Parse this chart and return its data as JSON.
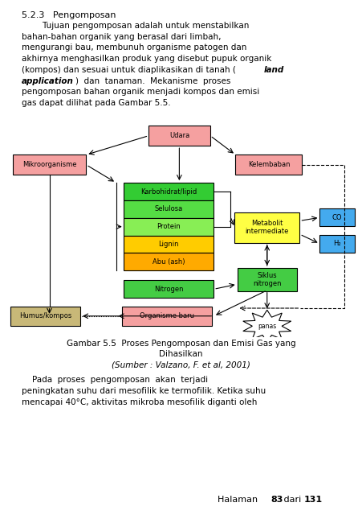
{
  "page_bg": "#ffffff",
  "title_section": "5.2.3   Pengomposan",
  "caption_line1": "Gambar 5.5  Proses Pengomposan dan Emisi Gas yang",
  "caption_line2": "Dihasilkan",
  "caption_line3": "(Sumber : Valzano, F. et al, 2001)",
  "colors": {
    "udara": "#f5a0a0",
    "mikroorganisme": "#f5a0a0",
    "kelembaban": "#f5a0a0",
    "karbohidrat": "#33cc33",
    "selulosa": "#55dd44",
    "protein": "#88ee55",
    "lignin": "#ffcc00",
    "abu": "#ffaa00",
    "nitrogen": "#44cc44",
    "metabolit": "#ffff44",
    "siklus": "#44cc44",
    "organisme_baru": "#f5a0a0",
    "humus": "#c8b878",
    "co": "#44aaee",
    "h2": "#44aaee"
  }
}
